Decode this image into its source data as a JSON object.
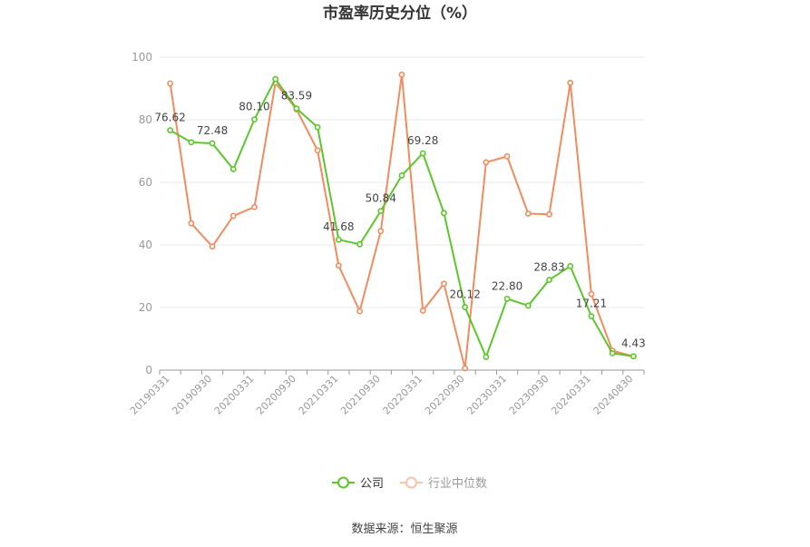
{
  "chart_data": {
    "type": "line",
    "title": "市盈率历史分位（%）",
    "source": "数据来源：恒生聚源",
    "ylim": [
      0,
      100
    ],
    "yticks": [
      "0",
      "20",
      "40",
      "60",
      "80",
      "100"
    ],
    "grid": true,
    "legend_position": "bottom",
    "x": [
      "20190331",
      "20190630",
      "20190930",
      "20191231",
      "20200331",
      "20200630",
      "20200930",
      "20201231",
      "20210331",
      "20210630",
      "20210930",
      "20211231",
      "20220331",
      "20220630",
      "20220930",
      "20221231",
      "20230331",
      "20230630",
      "20230930",
      "20231231",
      "20240331",
      "20240630",
      "20240830"
    ],
    "x_tick_labels": [
      "20190331",
      "20190930",
      "20200331",
      "20200930",
      "20210331",
      "20210930",
      "20220331",
      "20220930",
      "20230331",
      "20230930",
      "20240331",
      "20240830"
    ],
    "series": [
      {
        "name": "公司",
        "color": "#5cc72a",
        "values": [
          76.62,
          72.8,
          72.48,
          64.2,
          80.1,
          93.0,
          83.59,
          77.6,
          41.68,
          40.2,
          50.84,
          62.2,
          69.28,
          50.2,
          20.12,
          4.2,
          22.8,
          20.6,
          28.83,
          33.2,
          17.21,
          5.4,
          4.43
        ],
        "labels": {
          "0": "76.62",
          "2": "72.48",
          "4": "80.10",
          "6": "83.59",
          "8": "41.68",
          "10": "50.84",
          "12": "69.28",
          "14": "20.12",
          "16": "22.80",
          "18": "28.83",
          "20": "17.21",
          "22": "4.43"
        }
      },
      {
        "name": "行业中位数",
        "color": "#f28b5d",
        "values": [
          91.6,
          46.9,
          39.5,
          49.3,
          52.1,
          91.8,
          83.3,
          70.2,
          33.4,
          18.8,
          44.4,
          94.4,
          19.0,
          27.6,
          0.6,
          66.4,
          68.3,
          50.0,
          49.8,
          91.8,
          24.3,
          6.2,
          4.4
        ]
      }
    ]
  }
}
